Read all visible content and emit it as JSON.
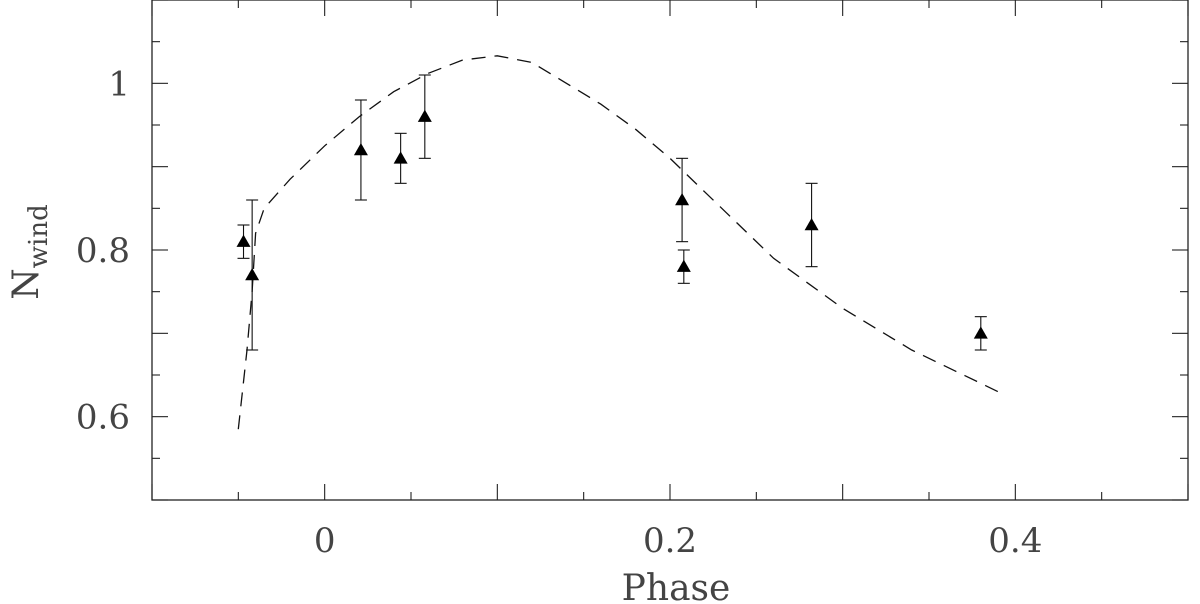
{
  "chart_data": {
    "type": "scatter",
    "xlabel": "Phase",
    "ylabel": "N",
    "ylabel_subscript": "wind",
    "xlim": [
      -0.1,
      0.5
    ],
    "ylim": [
      0.5,
      1.1
    ],
    "x_ticks": [
      -0.1,
      -0.05,
      0,
      0.05,
      0.1,
      0.15,
      0.2,
      0.25,
      0.3,
      0.35,
      0.4,
      0.45,
      0.5
    ],
    "x_tick_labels": [
      {
        "value": 0,
        "label": "0"
      },
      {
        "value": 0.2,
        "label": "0.2"
      },
      {
        "value": 0.4,
        "label": "0.4"
      }
    ],
    "y_ticks": [
      0.5,
      0.55,
      0.6,
      0.65,
      0.7,
      0.75,
      0.8,
      0.85,
      0.9,
      0.95,
      1.0,
      1.05,
      1.1
    ],
    "y_tick_labels": [
      {
        "value": 0.6,
        "label": "0.6"
      },
      {
        "value": 0.8,
        "label": "0.8"
      },
      {
        "value": 1.0,
        "label": "1"
      }
    ],
    "grid": false,
    "series": [
      {
        "style": "filled-triangle",
        "points": [
          {
            "x": -0.047,
            "y": 0.81,
            "ylow": 0.79,
            "yhigh": 0.83
          },
          {
            "x": -0.042,
            "y": 0.77,
            "ylow": 0.68,
            "yhigh": 0.86
          },
          {
            "x": 0.021,
            "y": 0.92,
            "ylow": 0.86,
            "yhigh": 0.98
          },
          {
            "x": 0.044,
            "y": 0.91,
            "ylow": 0.88,
            "yhigh": 0.94
          },
          {
            "x": 0.058,
            "y": 0.96,
            "ylow": 0.91,
            "yhigh": 1.01
          },
          {
            "x": 0.207,
            "y": 0.86,
            "ylow": 0.81,
            "yhigh": 0.91
          },
          {
            "x": 0.208,
            "y": 0.78,
            "ylow": 0.76,
            "yhigh": 0.8
          },
          {
            "x": 0.282,
            "y": 0.83,
            "ylow": 0.78,
            "yhigh": 0.88
          },
          {
            "x": 0.38,
            "y": 0.7,
            "ylow": 0.68,
            "yhigh": 0.72
          }
        ]
      },
      {
        "style": "dashed-line",
        "x": [
          -0.05,
          -0.045,
          -0.042,
          -0.04,
          -0.035,
          -0.02,
          0,
          0.02,
          0.04,
          0.06,
          0.08,
          0.1,
          0.12,
          0.14,
          0.16,
          0.18,
          0.2,
          0.22,
          0.24,
          0.26,
          0.28,
          0.3,
          0.32,
          0.34,
          0.36,
          0.38,
          0.39
        ],
        "y": [
          0.585,
          0.68,
          0.75,
          0.82,
          0.85,
          0.885,
          0.925,
          0.96,
          0.99,
          1.012,
          1.028,
          1.033,
          1.025,
          1.0,
          0.975,
          0.945,
          0.91,
          0.87,
          0.83,
          0.79,
          0.76,
          0.73,
          0.705,
          0.68,
          0.66,
          0.64,
          0.63
        ]
      }
    ]
  }
}
